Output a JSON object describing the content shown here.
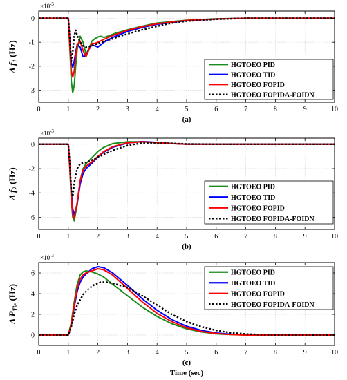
{
  "figure": {
    "xlabel": "Time (sec)",
    "colors": {
      "PID": "#1a8c1a",
      "TID": "#0000ff",
      "FOPID": "#ff0000",
      "FOPIDA": "#000000"
    }
  },
  "chart_data": [
    {
      "type": "line",
      "label": "(a)",
      "ylabel_main": "Δ f",
      "ylabel_sub": "1",
      "ylabel_unit": " (Hz)",
      "exponent": "×10",
      "exponent_power": "-3",
      "xlim": [
        0,
        10
      ],
      "ylim": [
        -3.5,
        0.3
      ],
      "xticks": [
        0,
        1,
        2,
        3,
        4,
        5,
        6,
        7,
        8,
        9,
        10
      ],
      "yticks": [
        0,
        -1,
        -2,
        -3
      ],
      "ytick_labels": [
        "0",
        "-1",
        "-2",
        "-3"
      ],
      "legend": "right",
      "series": [
        {
          "name": "HGTOEO PID",
          "key": "PID",
          "dash": "solid",
          "x": [
            0,
            1,
            1.05,
            1.1,
            1.15,
            1.2,
            1.25,
            1.3,
            1.4,
            1.5,
            1.6,
            1.7,
            1.8,
            1.9,
            2.0,
            2.1,
            2.2,
            2.4,
            2.6,
            2.8,
            3.0,
            3.5,
            4.0,
            5.0,
            6.0,
            7.0,
            10
          ],
          "y": [
            0,
            0,
            -1.2,
            -2.6,
            -3.1,
            -2.8,
            -2.0,
            -1.3,
            -0.75,
            -1.0,
            -1.5,
            -1.25,
            -0.95,
            -0.85,
            -0.78,
            -0.75,
            -0.8,
            -0.72,
            -0.62,
            -0.55,
            -0.48,
            -0.33,
            -0.2,
            -0.08,
            -0.02,
            0,
            0
          ]
        },
        {
          "name": "HGTOEO TID",
          "key": "TID",
          "dash": "solid",
          "x": [
            0,
            1,
            1.05,
            1.1,
            1.15,
            1.2,
            1.25,
            1.3,
            1.4,
            1.5,
            1.6,
            1.7,
            1.8,
            1.9,
            2.0,
            2.2,
            2.5,
            3.0,
            3.5,
            4.0,
            5.0,
            6.0,
            7.0,
            10
          ],
          "y": [
            0,
            0,
            -0.9,
            -1.85,
            -2.05,
            -1.8,
            -1.4,
            -1.1,
            -1.2,
            -1.6,
            -1.55,
            -1.3,
            -1.1,
            -1.15,
            -1.2,
            -1.0,
            -0.8,
            -0.55,
            -0.38,
            -0.25,
            -0.1,
            -0.03,
            0,
            0
          ]
        },
        {
          "name": "HGTOEO FOPID",
          "key": "FOPID",
          "dash": "solid",
          "x": [
            0,
            1,
            1.05,
            1.1,
            1.15,
            1.2,
            1.25,
            1.3,
            1.4,
            1.5,
            1.6,
            1.7,
            1.8,
            1.9,
            2.0,
            2.2,
            2.5,
            3.0,
            3.5,
            4.0,
            5.0,
            6.0,
            7.0,
            10
          ],
          "y": [
            0,
            0,
            -1.1,
            -2.2,
            -2.45,
            -2.2,
            -1.6,
            -1.1,
            -0.95,
            -1.35,
            -1.6,
            -1.3,
            -1.05,
            -1.05,
            -1.0,
            -0.88,
            -0.72,
            -0.5,
            -0.35,
            -0.23,
            -0.09,
            -0.03,
            0,
            0
          ]
        },
        {
          "name": "HGTOEO FOPIDA-FOIDN",
          "key": "FOPIDA",
          "dash": "dotted",
          "x": [
            0,
            1,
            1.05,
            1.1,
            1.15,
            1.2,
            1.25,
            1.3,
            1.4,
            1.5,
            1.6,
            1.8,
            2.0,
            2.5,
            3.0,
            3.5,
            4.0,
            4.5,
            5.0,
            6.0,
            7.0,
            10
          ],
          "y": [
            0,
            0,
            -0.8,
            -1.8,
            -1.4,
            -0.75,
            -0.5,
            -0.7,
            -1.0,
            -1.15,
            -1.2,
            -1.15,
            -1.05,
            -0.85,
            -0.65,
            -0.48,
            -0.33,
            -0.2,
            -0.12,
            -0.04,
            0,
            0
          ]
        }
      ]
    },
    {
      "type": "line",
      "label": "(b)",
      "ylabel_main": "Δ f",
      "ylabel_sub": "2",
      "ylabel_unit": " (Hz)",
      "exponent": "×10",
      "exponent_power": "-3",
      "xlim": [
        0,
        10
      ],
      "ylim": [
        -7,
        0.5
      ],
      "xticks": [
        0,
        1,
        2,
        3,
        4,
        5,
        6,
        7,
        8,
        9,
        10
      ],
      "yticks": [
        0,
        -2,
        -4,
        -6
      ],
      "ytick_labels": [
        "0",
        "-2",
        "-4",
        "-6"
      ],
      "legend": "bottom-right",
      "series": [
        {
          "name": "HGTOEO PID",
          "key": "PID",
          "dash": "solid",
          "x": [
            0,
            1,
            1.05,
            1.1,
            1.15,
            1.2,
            1.3,
            1.4,
            1.5,
            1.6,
            1.8,
            2.0,
            2.2,
            2.5,
            3.0,
            3.5,
            4.0,
            4.5,
            5.0,
            6.0,
            10
          ],
          "y": [
            0,
            0,
            -2.0,
            -4.5,
            -6.0,
            -6.3,
            -5.0,
            -3.0,
            -2.0,
            -1.6,
            -1.1,
            -0.6,
            -0.25,
            0.05,
            0.2,
            0.2,
            0.12,
            0.05,
            0,
            0,
            0
          ]
        },
        {
          "name": "HGTOEO TID",
          "key": "TID",
          "dash": "solid",
          "x": [
            0,
            1,
            1.05,
            1.1,
            1.15,
            1.2,
            1.3,
            1.4,
            1.5,
            1.6,
            1.8,
            2.0,
            2.2,
            2.5,
            3.0,
            3.5,
            4.0,
            4.5,
            5.0,
            6.0,
            10
          ],
          "y": [
            0,
            0,
            -1.6,
            -3.8,
            -5.3,
            -5.8,
            -4.9,
            -3.3,
            -2.4,
            -2.0,
            -1.55,
            -1.05,
            -0.65,
            -0.25,
            0.1,
            0.22,
            0.15,
            0.06,
            0,
            0,
            0
          ]
        },
        {
          "name": "HGTOEO FOPID",
          "key": "FOPID",
          "dash": "solid",
          "x": [
            0,
            1,
            1.05,
            1.1,
            1.15,
            1.2,
            1.3,
            1.4,
            1.5,
            1.6,
            1.8,
            2.0,
            2.2,
            2.5,
            3.0,
            3.5,
            4.0,
            4.5,
            5.0,
            6.0,
            10
          ],
          "y": [
            0,
            0,
            -1.8,
            -4.2,
            -5.8,
            -6.1,
            -4.8,
            -3.0,
            -2.1,
            -1.8,
            -1.45,
            -1.0,
            -0.6,
            -0.2,
            0.12,
            0.2,
            0.13,
            0.05,
            0,
            0,
            0
          ]
        },
        {
          "name": "HGTOEO FOPIDA-FOIDN",
          "key": "FOPIDA",
          "dash": "dotted",
          "x": [
            0,
            1,
            1.05,
            1.1,
            1.15,
            1.2,
            1.3,
            1.4,
            1.5,
            1.6,
            1.8,
            2.0,
            2.5,
            3.0,
            3.5,
            4.0,
            5.0,
            6.0,
            10
          ],
          "y": [
            0,
            0,
            -1.5,
            -3.7,
            -4.3,
            -3.2,
            -2.0,
            -1.6,
            -1.55,
            -1.5,
            -1.3,
            -1.05,
            -0.5,
            -0.1,
            0.1,
            0.12,
            0.02,
            0,
            0
          ]
        }
      ]
    },
    {
      "type": "line",
      "label": "(c)",
      "ylabel_main": "Δ P",
      "ylabel_sub": "Tie",
      "ylabel_unit": " (Hz)",
      "exponent": "×10",
      "exponent_power": "-3",
      "xlim": [
        0,
        10
      ],
      "ylim": [
        -1,
        7
      ],
      "xticks": [
        0,
        1,
        2,
        3,
        4,
        5,
        6,
        7,
        8,
        9,
        10
      ],
      "yticks": [
        0,
        2,
        4,
        6
      ],
      "ytick_labels": [
        "0",
        "2",
        "4",
        "6"
      ],
      "legend": "top-right",
      "series": [
        {
          "name": "HGTOEO PID",
          "key": "PID",
          "dash": "solid",
          "x": [
            0,
            1,
            1.1,
            1.2,
            1.3,
            1.4,
            1.5,
            1.6,
            1.8,
            2.0,
            2.2,
            2.5,
            3.0,
            3.5,
            4.0,
            4.5,
            5.0,
            5.5,
            6.0,
            6.5,
            7.0,
            10
          ],
          "y": [
            0,
            0,
            1.2,
            3.2,
            4.9,
            5.8,
            6.1,
            6.2,
            6.1,
            5.9,
            5.6,
            4.9,
            3.8,
            2.7,
            1.8,
            1.1,
            0.6,
            0.3,
            0.12,
            0.05,
            0,
            0
          ]
        },
        {
          "name": "HGTOEO TID",
          "key": "TID",
          "dash": "solid",
          "x": [
            0,
            1,
            1.1,
            1.2,
            1.3,
            1.4,
            1.5,
            1.6,
            1.8,
            2.0,
            2.2,
            2.5,
            3.0,
            3.5,
            4.0,
            4.5,
            5.0,
            5.5,
            6.0,
            6.5,
            7.0,
            10
          ],
          "y": [
            0,
            0,
            0.9,
            2.7,
            4.2,
            5.1,
            5.6,
            5.9,
            6.4,
            6.6,
            6.5,
            6.0,
            4.8,
            3.5,
            2.4,
            1.5,
            0.85,
            0.45,
            0.2,
            0.08,
            0.02,
            0
          ]
        },
        {
          "name": "HGTOEO FOPID",
          "key": "FOPID",
          "dash": "solid",
          "x": [
            0,
            1,
            1.1,
            1.2,
            1.3,
            1.4,
            1.5,
            1.6,
            1.8,
            2.0,
            2.2,
            2.5,
            3.0,
            3.5,
            4.0,
            4.5,
            5.0,
            5.5,
            6.0,
            6.5,
            7.0,
            10
          ],
          "y": [
            0,
            0,
            1.0,
            2.9,
            4.5,
            5.4,
            5.8,
            6.0,
            6.2,
            6.4,
            6.3,
            5.8,
            4.5,
            3.2,
            2.1,
            1.3,
            0.7,
            0.35,
            0.15,
            0.05,
            0,
            0
          ]
        },
        {
          "name": "HGTOEO FOPIDA-FOIDN",
          "key": "FOPIDA",
          "dash": "dotted",
          "x": [
            0,
            1,
            1.1,
            1.2,
            1.3,
            1.5,
            1.7,
            1.9,
            2.1,
            2.3,
            2.5,
            3.0,
            3.5,
            4.0,
            4.5,
            5.0,
            5.5,
            6.0,
            6.5,
            7.0,
            7.5,
            8.0,
            10
          ],
          "y": [
            0,
            0,
            0.8,
            2.0,
            2.9,
            3.9,
            4.5,
            4.9,
            5.1,
            5.1,
            5.0,
            4.6,
            3.8,
            2.9,
            2.0,
            1.3,
            0.8,
            0.45,
            0.22,
            0.1,
            0.04,
            0,
            0
          ]
        }
      ]
    }
  ]
}
